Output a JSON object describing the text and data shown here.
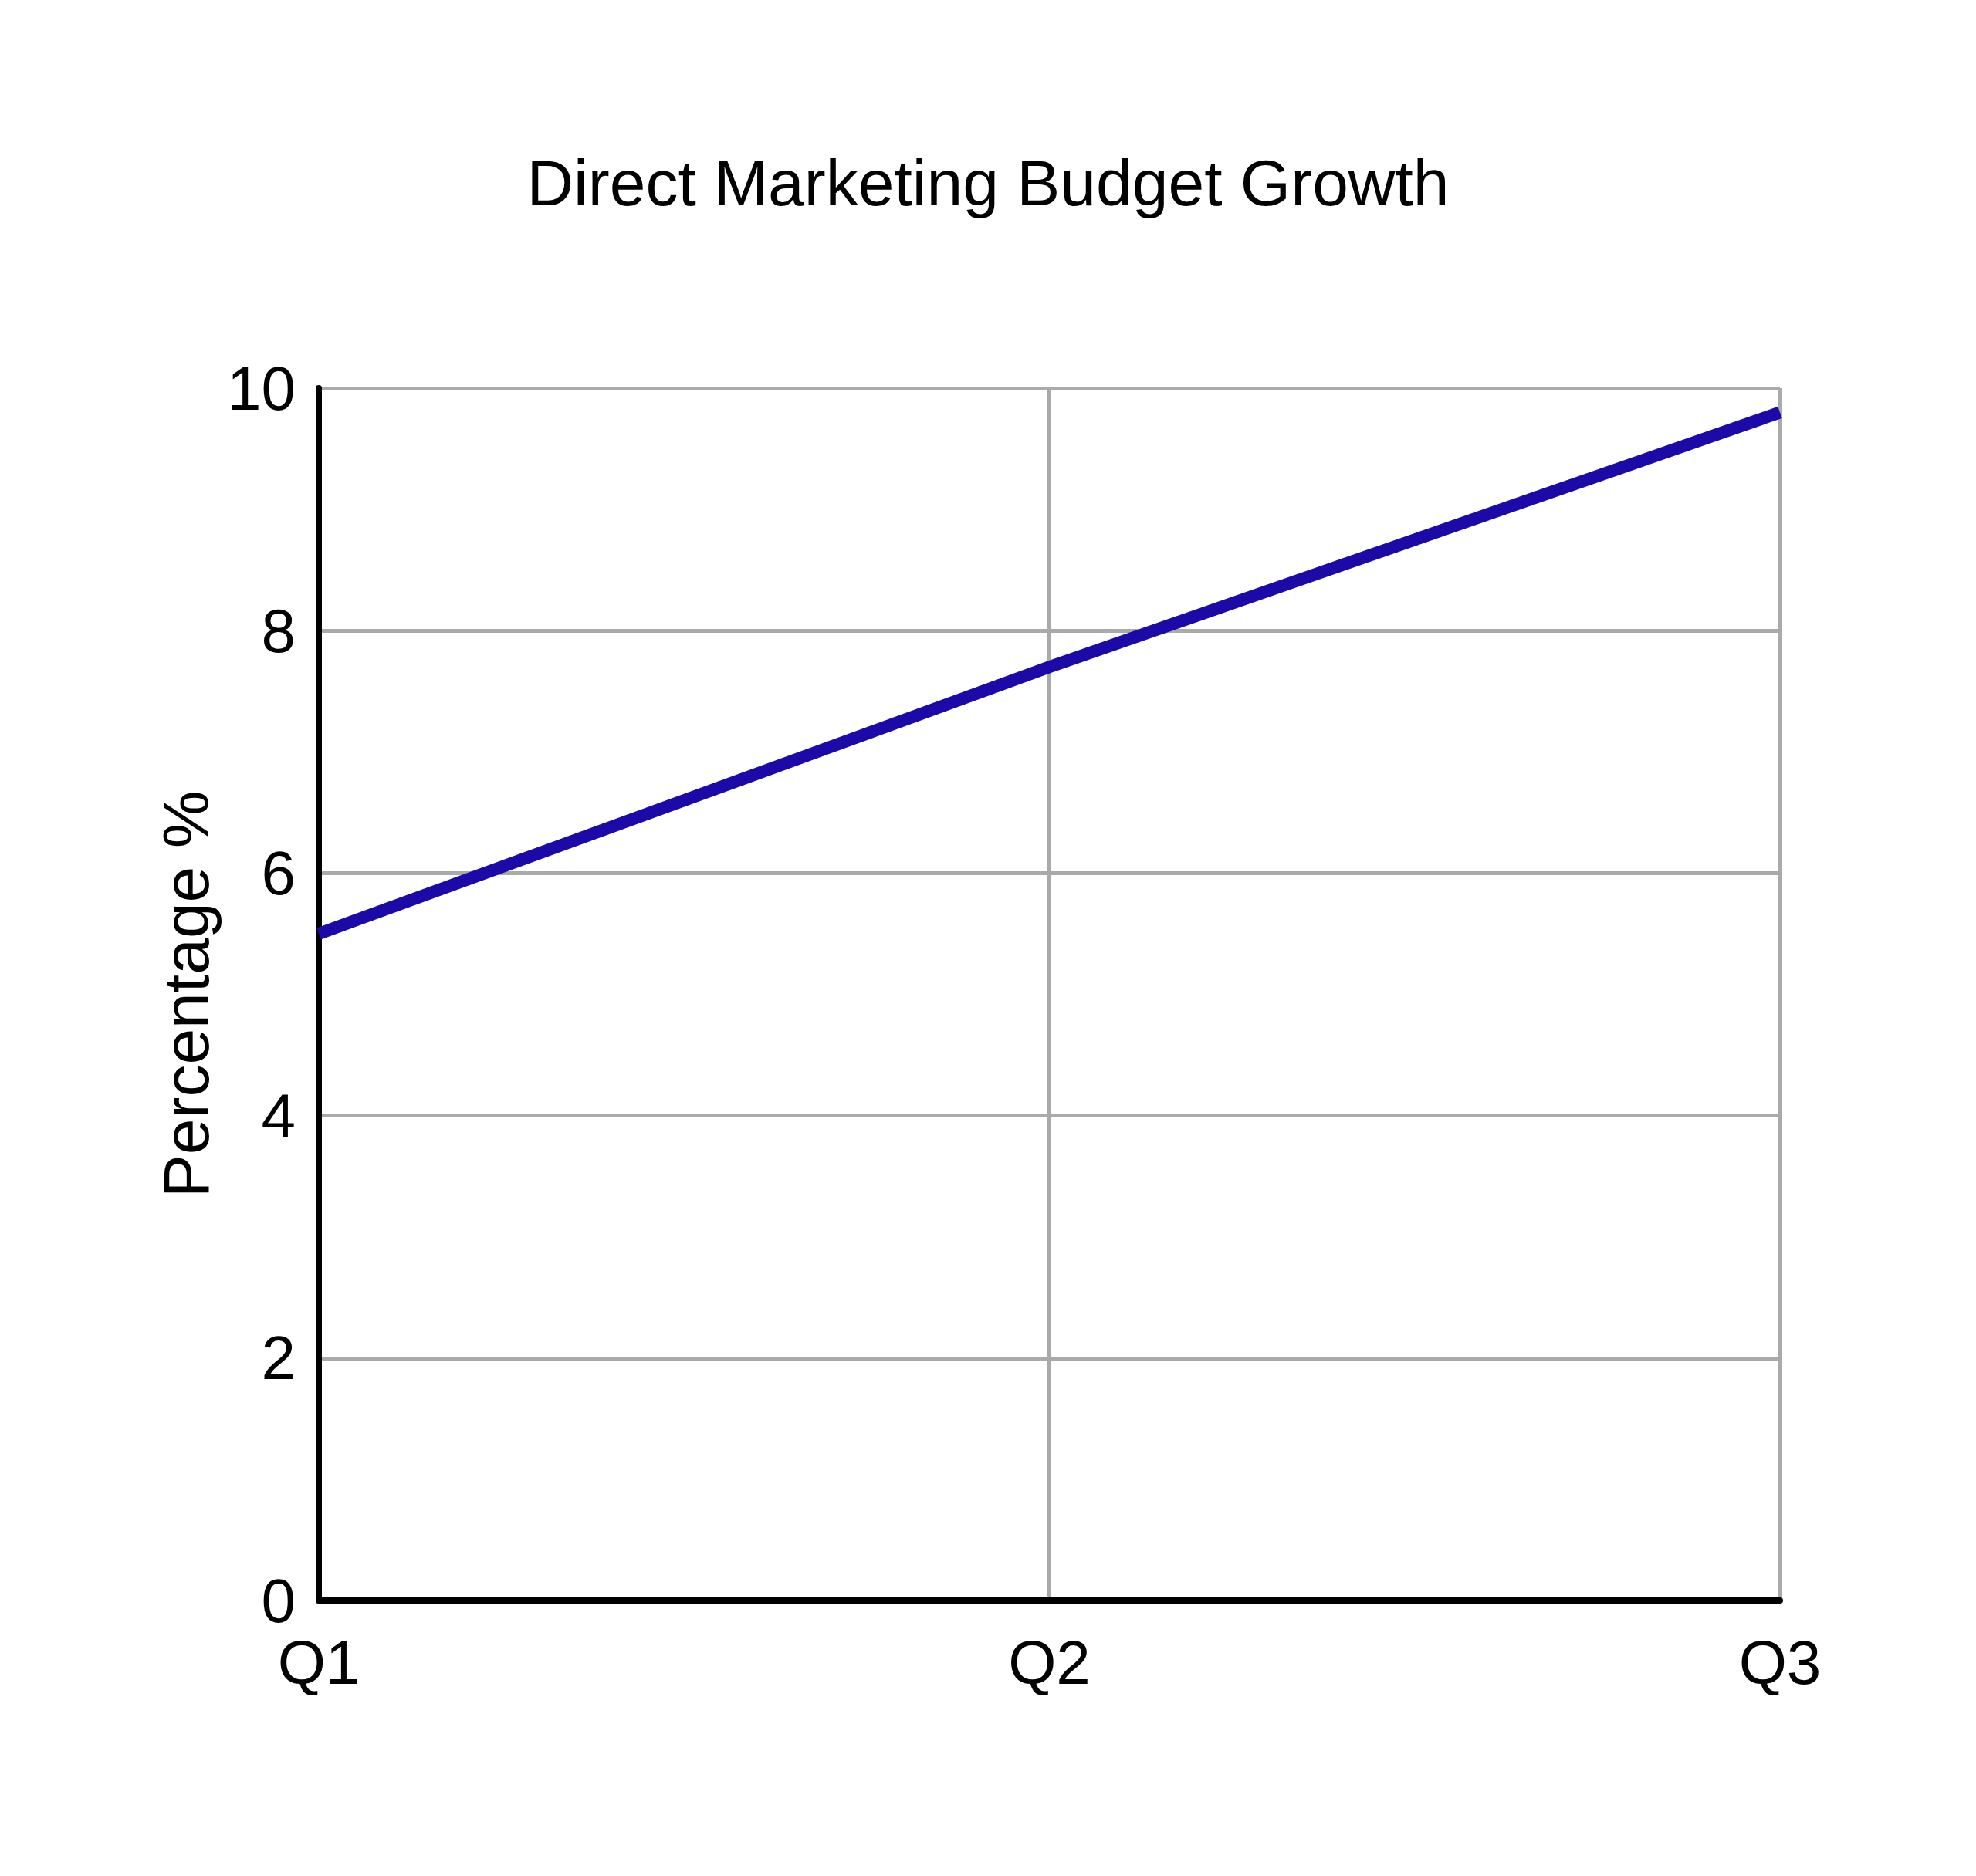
{
  "chart_data": {
    "type": "line",
    "title": "Direct Marketing Budget Growth",
    "ylabel": "Percentage %",
    "categories": [
      "Q1",
      "Q2",
      "Q3"
    ],
    "series": [
      {
        "color": "#1b0aa8",
        "values": [
          5.5,
          7.7,
          9.8
        ]
      }
    ],
    "ylim": [
      0,
      10
    ],
    "yticks": [
      0,
      2,
      4,
      6,
      8,
      10
    ],
    "grid": true,
    "marker": "none",
    "line_style": "solid"
  }
}
